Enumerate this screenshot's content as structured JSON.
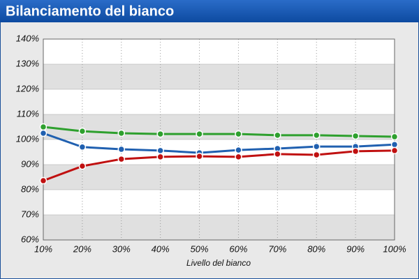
{
  "chart_data": {
    "type": "line",
    "title": "Bilanciamento del bianco",
    "xlabel": "Livello del bianco",
    "categories": [
      "10%",
      "20%",
      "30%",
      "40%",
      "50%",
      "60%",
      "70%",
      "80%",
      "90%",
      "100%"
    ],
    "series": [
      {
        "color": "#2ea02e",
        "values": [
          105,
          103.3,
          102.5,
          102.2,
          102.2,
          102.2,
          101.7,
          101.7,
          101.4,
          101.1
        ]
      },
      {
        "color": "#2060b0",
        "values": [
          102.5,
          97,
          96.1,
          95.6,
          94.7,
          95.8,
          96.4,
          97.2,
          97.2,
          98
        ]
      },
      {
        "color": "#c01010",
        "values": [
          83.6,
          89.4,
          92.2,
          93.1,
          93.3,
          93.1,
          94.2,
          93.9,
          95.3,
          95.6
        ]
      }
    ],
    "ylim": [
      60,
      140
    ],
    "yticks": [
      {
        "value": 60,
        "label": "60%"
      },
      {
        "value": 70,
        "label": "70%"
      },
      {
        "value": 80,
        "label": "80%"
      },
      {
        "value": 90,
        "label": "90%"
      },
      {
        "value": 100,
        "label": "100%"
      },
      {
        "value": 110,
        "label": "110%"
      },
      {
        "value": 120,
        "label": "120%"
      },
      {
        "value": 130,
        "label": "130%"
      },
      {
        "value": 140,
        "label": "140%"
      }
    ],
    "grid": true,
    "banded": true
  }
}
